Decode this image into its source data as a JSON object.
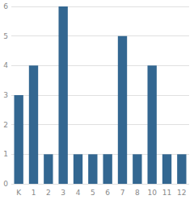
{
  "chart_data": {
    "type": "bar",
    "categories": [
      "K",
      "1",
      "2",
      "3",
      "4",
      "5",
      "6",
      "7",
      "8",
      "10",
      "11",
      "12"
    ],
    "values": [
      3,
      4,
      1,
      6,
      1,
      1,
      1,
      5,
      1,
      4,
      1,
      1
    ],
    "color": "#336791",
    "ylim": [
      0,
      6
    ],
    "yticks": [
      0,
      1,
      2,
      3,
      4,
      5,
      6
    ],
    "grid": true
  }
}
